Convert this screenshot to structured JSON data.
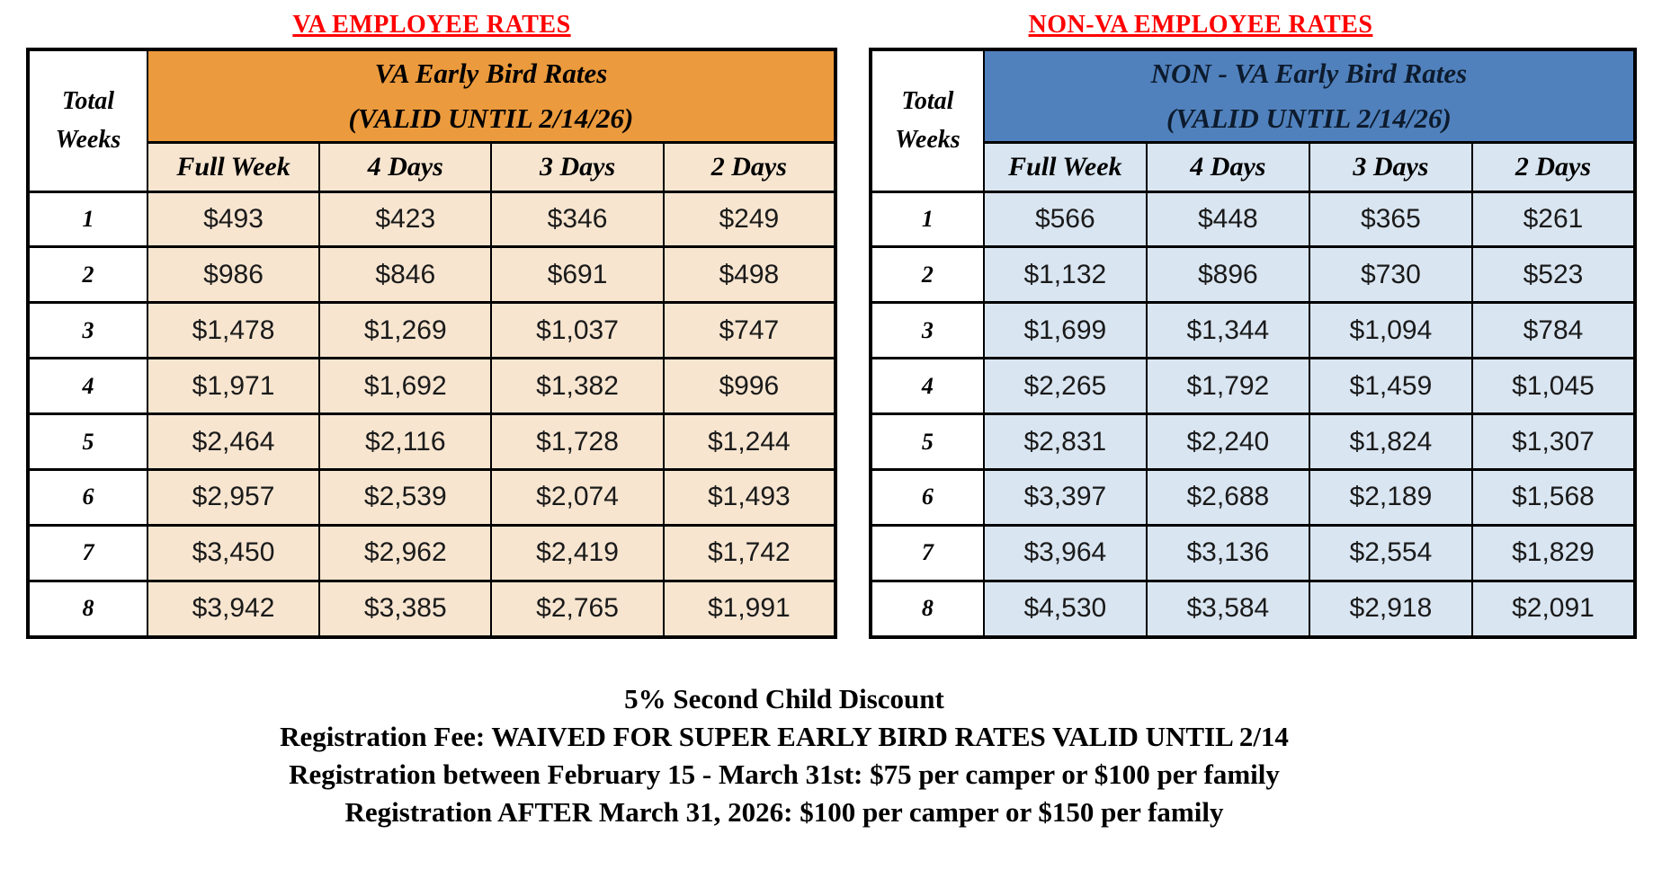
{
  "tables": [
    {
      "key": "va",
      "title": "VA EMPLOYEE RATES",
      "header_line1": "VA Early Bird Rates",
      "header_line2": "(VALID UNTIL 2/14/26)",
      "corner_line1": "Total",
      "corner_line2": "Weeks",
      "columns": [
        "Full Week",
        "4 Days",
        "3 Days",
        "2 Days"
      ],
      "rows": [
        {
          "weeks": "1",
          "prices": [
            "$493",
            "$423",
            "$346",
            "$249"
          ]
        },
        {
          "weeks": "2",
          "prices": [
            "$986",
            "$846",
            "$691",
            "$498"
          ]
        },
        {
          "weeks": "3",
          "prices": [
            "$1,478",
            "$1,269",
            "$1,037",
            "$747"
          ]
        },
        {
          "weeks": "4",
          "prices": [
            "$1,971",
            "$1,692",
            "$1,382",
            "$996"
          ]
        },
        {
          "weeks": "5",
          "prices": [
            "$2,464",
            "$2,116",
            "$1,728",
            "$1,244"
          ]
        },
        {
          "weeks": "6",
          "prices": [
            "$2,957",
            "$2,539",
            "$2,074",
            "$1,493"
          ]
        },
        {
          "weeks": "7",
          "prices": [
            "$3,450",
            "$2,962",
            "$2,419",
            "$1,742"
          ]
        },
        {
          "weeks": "8",
          "prices": [
            "$3,942",
            "$3,385",
            "$2,765",
            "$1,991"
          ]
        }
      ],
      "colors": {
        "header_bg": "#EB9A3D",
        "cell_bg": "#F7E5D0",
        "header_text": "#000000"
      }
    },
    {
      "key": "nonva",
      "title": "NON-VA EMPLOYEE RATES",
      "header_line1": "NON - VA Early Bird Rates",
      "header_line2": "(VALID UNTIL 2/14/26)",
      "corner_line1": "Total",
      "corner_line2": "Weeks",
      "columns": [
        "Full Week",
        "4 Days",
        "3 Days",
        "2 Days"
      ],
      "rows": [
        {
          "weeks": "1",
          "prices": [
            "$566",
            "$448",
            "$365",
            "$261"
          ]
        },
        {
          "weeks": "2",
          "prices": [
            "$1,132",
            "$896",
            "$730",
            "$523"
          ]
        },
        {
          "weeks": "3",
          "prices": [
            "$1,699",
            "$1,344",
            "$1,094",
            "$784"
          ]
        },
        {
          "weeks": "4",
          "prices": [
            "$2,265",
            "$1,792",
            "$1,459",
            "$1,045"
          ]
        },
        {
          "weeks": "5",
          "prices": [
            "$2,831",
            "$2,240",
            "$1,824",
            "$1,307"
          ]
        },
        {
          "weeks": "6",
          "prices": [
            "$3,397",
            "$2,688",
            "$2,189",
            "$1,568"
          ]
        },
        {
          "weeks": "7",
          "prices": [
            "$3,964",
            "$3,136",
            "$2,554",
            "$1,829"
          ]
        },
        {
          "weeks": "8",
          "prices": [
            "$4,530",
            "$3,584",
            "$2,918",
            "$2,091"
          ]
        }
      ],
      "colors": {
        "header_bg": "#5081BC",
        "cell_bg": "#D9E5F1",
        "header_text": "#0D1B2E"
      }
    }
  ],
  "footer": {
    "lines": [
      "5% Second Child Discount",
      "Registration Fee: WAIVED FOR SUPER EARLY BIRD RATES VALID UNTIL 2/14",
      "Registration between February 15 - March 31st: $75 per camper or $100 per family",
      "Registration AFTER March 31, 2026: $100 per camper or $150 per family"
    ]
  },
  "colors": {
    "title_red": "#FF0000",
    "border": "#000000",
    "page_bg": "#FFFFFF"
  }
}
